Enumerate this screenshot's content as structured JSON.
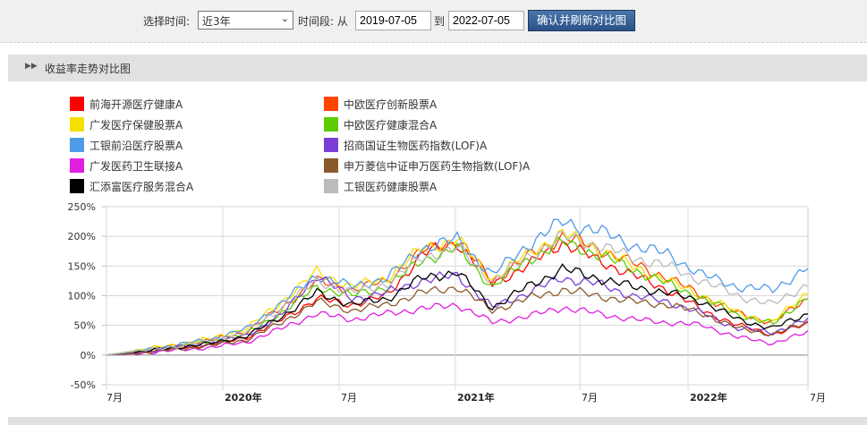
{
  "toolbar": {
    "select_time_label": "选择时间:",
    "period_select_value": "近3年",
    "range_label": "时间段: 从",
    "start_date": "2019-07-05",
    "to_label": "到",
    "end_date": "2022-07-05",
    "confirm_button": "确认并刷新对比图"
  },
  "section": {
    "title": "收益率走势对比图"
  },
  "legend": [
    {
      "name": "前海开源医疗健康A",
      "color": "#ff0000"
    },
    {
      "name": "中欧医疗创新股票A",
      "color": "#ff4500"
    },
    {
      "name": "广发医疗保健股票A",
      "color": "#f5e000"
    },
    {
      "name": "中欧医疗健康混合A",
      "color": "#5ccc00"
    },
    {
      "name": "工银前沿医疗股票A",
      "color": "#4f9be8"
    },
    {
      "name": "招商国证生物医药指数(LOF)A",
      "color": "#7b3fd8"
    },
    {
      "name": "广发医药卫生联接A",
      "color": "#e01fe0"
    },
    {
      "name": "申万菱信中证申万医药生物指数(LOF)A",
      "color": "#8b5a2b"
    },
    {
      "name": "汇添富医疗服务混合A",
      "color": "#000000"
    },
    {
      "name": "工银医药健康股票A",
      "color": "#bbbbbb"
    }
  ],
  "chart_data": {
    "type": "line",
    "title": "收益率走势对比图",
    "xlabel": "",
    "ylabel": "",
    "ylim": [
      -50,
      250
    ],
    "yticks": [
      "250%",
      "200%",
      "150%",
      "100%",
      "50%",
      "0%",
      "-50%"
    ],
    "xticks": [
      "7月",
      "2020年",
      "7月",
      "2021年",
      "7月",
      "2022年",
      "7月"
    ],
    "grid": true,
    "legend_position": "top",
    "x": [
      "2019-07",
      "2019-09",
      "2019-11",
      "2020-01",
      "2020-03",
      "2020-05",
      "2020-07",
      "2020-09",
      "2020-11",
      "2021-01",
      "2021-02",
      "2021-03",
      "2021-05",
      "2021-06",
      "2021-07",
      "2021-09",
      "2021-11",
      "2022-01",
      "2022-03",
      "2022-05",
      "2022-07"
    ],
    "series": [
      {
        "name": "前海开源医疗健康A",
        "values": [
          0,
          5,
          12,
          18,
          30,
          60,
          95,
          85,
          100,
          170,
          190,
          120,
          150,
          190,
          160,
          135,
          110,
          75,
          50,
          35,
          52
        ]
      },
      {
        "name": "中欧医疗创新股票A",
        "values": [
          0,
          7,
          16,
          25,
          40,
          80,
          125,
          110,
          125,
          175,
          195,
          125,
          165,
          200,
          180,
          155,
          130,
          100,
          70,
          55,
          95
        ]
      },
      {
        "name": "广发医疗保健股票A",
        "values": [
          0,
          9,
          18,
          28,
          45,
          90,
          140,
          115,
          130,
          180,
          195,
          128,
          170,
          205,
          180,
          150,
          125,
          100,
          72,
          55,
          108
        ]
      },
      {
        "name": "中欧医疗健康混合A",
        "values": [
          0,
          6,
          14,
          22,
          36,
          72,
          115,
          100,
          115,
          160,
          180,
          115,
          160,
          190,
          170,
          145,
          120,
          95,
          68,
          52,
          100
        ]
      },
      {
        "name": "工银前沿医疗股票A",
        "values": [
          0,
          8,
          17,
          27,
          44,
          88,
          135,
          115,
          130,
          180,
          195,
          135,
          185,
          225,
          210,
          185,
          170,
          135,
          115,
          110,
          148
        ]
      },
      {
        "name": "招商国证生物医药指数(LOF)A",
        "values": [
          0,
          5,
          13,
          20,
          33,
          68,
          135,
          95,
          105,
          125,
          135,
          80,
          105,
          130,
          120,
          100,
          90,
          70,
          45,
          38,
          60
        ]
      },
      {
        "name": "广发医药卫生联接A",
        "values": [
          0,
          3,
          8,
          13,
          22,
          45,
          70,
          60,
          70,
          78,
          85,
          55,
          65,
          80,
          70,
          60,
          55,
          50,
          30,
          20,
          38
        ]
      },
      {
        "name": "申万菱信中证申万医药生物指数(LOF)A",
        "values": [
          0,
          4,
          10,
          16,
          26,
          55,
          90,
          75,
          85,
          105,
          115,
          75,
          95,
          110,
          100,
          90,
          85,
          70,
          45,
          35,
          55
        ]
      },
      {
        "name": "汇添富医疗服务混合A",
        "values": [
          0,
          6,
          13,
          20,
          32,
          65,
          105,
          85,
          95,
          130,
          140,
          80,
          115,
          145,
          130,
          115,
          105,
          90,
          60,
          45,
          70
        ]
      },
      {
        "name": "工银医药健康股票A",
        "values": [
          0,
          7,
          15,
          24,
          38,
          80,
          125,
          105,
          120,
          165,
          180,
          125,
          165,
          200,
          185,
          165,
          150,
          125,
          100,
          85,
          120
        ]
      }
    ]
  }
}
